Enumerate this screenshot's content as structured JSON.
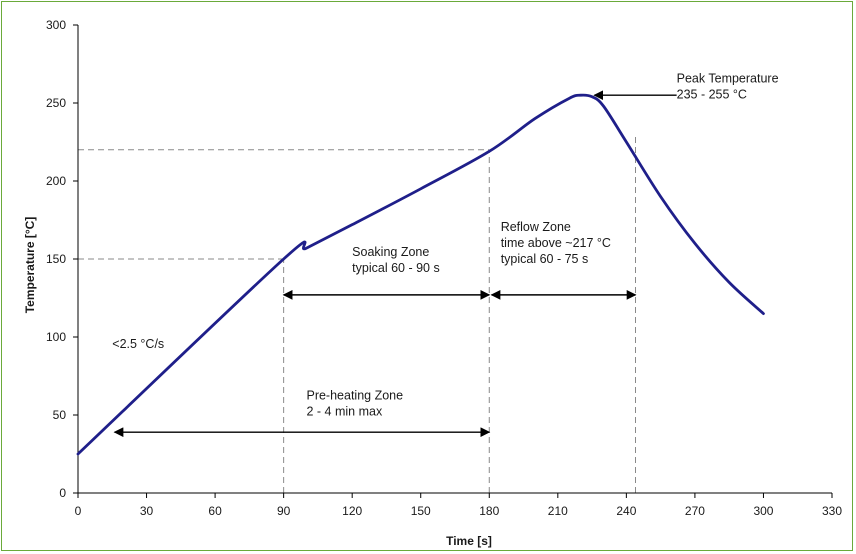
{
  "chart_data": {
    "type": "line",
    "xlabel": "Time [s]",
    "ylabel": "Temperature [°C]",
    "xlim": [
      0,
      330
    ],
    "ylim": [
      0,
      300
    ],
    "x_ticks": [
      0,
      30,
      60,
      90,
      120,
      150,
      180,
      210,
      240,
      270,
      300,
      330
    ],
    "y_ticks": [
      0,
      50,
      100,
      150,
      200,
      250,
      300
    ],
    "grid": false,
    "series_color": "#1f1f8a",
    "series": [
      {
        "x": [
          0,
          90,
          100,
          120,
          150,
          180,
          200,
          215,
          220,
          225,
          230,
          240,
          255,
          270,
          285,
          300
        ],
        "y": [
          25,
          150,
          157,
          172,
          195,
          219,
          240,
          253,
          255,
          254,
          248,
          225,
          190,
          160,
          135,
          115
        ]
      }
    ],
    "reference_lines": [
      {
        "x": [
          0,
          90
        ],
        "y": [
          150,
          150
        ]
      },
      {
        "x": [
          0,
          180
        ],
        "y": [
          220,
          220
        ]
      },
      {
        "x": [
          90,
          90
        ],
        "y": [
          0,
          150
        ]
      },
      {
        "x": [
          180,
          180
        ],
        "y": [
          0,
          220
        ]
      },
      {
        "x": [
          244,
          244
        ],
        "y": [
          0,
          230
        ]
      }
    ],
    "annotations": {
      "ramp": {
        "text": "<2.5 °C/s",
        "x": 15,
        "y": 93
      },
      "soaking": {
        "lines": [
          "Soaking Zone",
          "typical 60 - 90 s"
        ],
        "x": 120,
        "y": 152,
        "arrow": {
          "from": 90,
          "to": 180,
          "y": 127
        }
      },
      "reflow": {
        "lines": [
          "Reflow Zone",
          "time above ~217 °C",
          "typical 60 - 75 s"
        ],
        "x": 185,
        "y": 168,
        "arrow": {
          "from": 181,
          "to": 244,
          "y": 127
        }
      },
      "preheat": {
        "lines": [
          "Pre-heating Zone",
          "2 - 4 min max"
        ],
        "x": 100,
        "y": 60,
        "arrow": {
          "from": 16,
          "to": 180,
          "y": 39
        }
      },
      "peak": {
        "lines": [
          "Peak Temperature",
          "235 - 255 °C"
        ],
        "x": 262,
        "y": 263,
        "arrow": {
          "from_x": 262,
          "to_x": 226,
          "y": 255
        }
      }
    }
  }
}
